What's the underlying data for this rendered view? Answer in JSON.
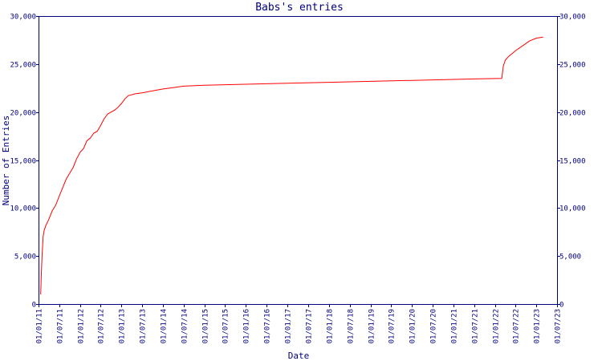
{
  "chart_data": {
    "type": "line",
    "title": "Babs's entries",
    "xlabel": "Date",
    "ylabel": "Number of Entries",
    "ylim": [
      0,
      30000
    ],
    "xlim": [
      "2011-01-01",
      "2023-07-01"
    ],
    "grid": false,
    "y_ticks": [
      {
        "value": 0,
        "label": "0"
      },
      {
        "value": 5000,
        "label": "5,000"
      },
      {
        "value": 10000,
        "label": "10,000"
      },
      {
        "value": 15000,
        "label": "15,000"
      },
      {
        "value": 20000,
        "label": "20,000"
      },
      {
        "value": 25000,
        "label": "25,000"
      },
      {
        "value": 30000,
        "label": "30,000"
      }
    ],
    "x_ticks": [
      {
        "date": "2011-01-01",
        "label": "01/01/11"
      },
      {
        "date": "2011-07-01",
        "label": "01/07/11"
      },
      {
        "date": "2012-01-01",
        "label": "01/01/12"
      },
      {
        "date": "2012-07-01",
        "label": "01/07/12"
      },
      {
        "date": "2013-01-01",
        "label": "01/01/13"
      },
      {
        "date": "2013-07-01",
        "label": "01/07/13"
      },
      {
        "date": "2014-01-01",
        "label": "01/01/14"
      },
      {
        "date": "2014-07-01",
        "label": "01/07/14"
      },
      {
        "date": "2015-01-01",
        "label": "01/01/15"
      },
      {
        "date": "2015-07-01",
        "label": "01/07/15"
      },
      {
        "date": "2016-01-01",
        "label": "01/01/16"
      },
      {
        "date": "2016-07-01",
        "label": "01/07/16"
      },
      {
        "date": "2017-01-01",
        "label": "01/01/17"
      },
      {
        "date": "2017-07-01",
        "label": "01/07/17"
      },
      {
        "date": "2018-01-01",
        "label": "01/01/18"
      },
      {
        "date": "2018-07-01",
        "label": "01/07/18"
      },
      {
        "date": "2019-01-01",
        "label": "01/01/19"
      },
      {
        "date": "2019-07-01",
        "label": "01/07/19"
      },
      {
        "date": "2020-01-01",
        "label": "01/01/20"
      },
      {
        "date": "2020-07-01",
        "label": "01/07/20"
      },
      {
        "date": "2021-01-01",
        "label": "01/01/21"
      },
      {
        "date": "2021-07-01",
        "label": "01/07/21"
      },
      {
        "date": "2022-01-01",
        "label": "01/01/22"
      },
      {
        "date": "2022-07-01",
        "label": "01/07/22"
      },
      {
        "date": "2023-01-01",
        "label": "01/01/23"
      },
      {
        "date": "2023-07-01",
        "label": "01/07/23"
      }
    ],
    "series": [
      {
        "color": "#ff0000",
        "points": [
          {
            "x": "2011-01-20",
            "y": 1000
          },
          {
            "x": "2011-01-25",
            "y": 3000
          },
          {
            "x": "2011-02-01",
            "y": 5000
          },
          {
            "x": "2011-02-10",
            "y": 7000
          },
          {
            "x": "2011-02-20",
            "y": 7700
          },
          {
            "x": "2011-03-07",
            "y": 8200
          },
          {
            "x": "2011-04-01",
            "y": 8800
          },
          {
            "x": "2011-05-01",
            "y": 9700
          },
          {
            "x": "2011-06-01",
            "y": 10300
          },
          {
            "x": "2011-07-01",
            "y": 11200
          },
          {
            "x": "2011-08-01",
            "y": 12100
          },
          {
            "x": "2011-09-01",
            "y": 13000
          },
          {
            "x": "2011-10-01",
            "y": 13600
          },
          {
            "x": "2011-11-01",
            "y": 14200
          },
          {
            "x": "2011-12-01",
            "y": 15100
          },
          {
            "x": "2012-01-01",
            "y": 15800
          },
          {
            "x": "2012-02-01",
            "y": 16200
          },
          {
            "x": "2012-03-01",
            "y": 17000
          },
          {
            "x": "2012-04-01",
            "y": 17300
          },
          {
            "x": "2012-05-01",
            "y": 17800
          },
          {
            "x": "2012-06-01",
            "y": 18000
          },
          {
            "x": "2012-07-01",
            "y": 18600
          },
          {
            "x": "2012-08-01",
            "y": 19300
          },
          {
            "x": "2012-09-01",
            "y": 19800
          },
          {
            "x": "2012-10-01",
            "y": 20000
          },
          {
            "x": "2012-11-01",
            "y": 20200
          },
          {
            "x": "2012-12-01",
            "y": 20500
          },
          {
            "x": "2013-01-01",
            "y": 20900
          },
          {
            "x": "2013-02-01",
            "y": 21400
          },
          {
            "x": "2013-03-01",
            "y": 21700
          },
          {
            "x": "2013-05-01",
            "y": 21900
          },
          {
            "x": "2013-07-01",
            "y": 22000
          },
          {
            "x": "2013-10-01",
            "y": 22200
          },
          {
            "x": "2014-01-01",
            "y": 22400
          },
          {
            "x": "2014-04-01",
            "y": 22550
          },
          {
            "x": "2014-07-01",
            "y": 22700
          },
          {
            "x": "2015-01-01",
            "y": 22800
          },
          {
            "x": "2016-01-01",
            "y": 22900
          },
          {
            "x": "2017-01-01",
            "y": 23000
          },
          {
            "x": "2018-01-01",
            "y": 23100
          },
          {
            "x": "2019-01-01",
            "y": 23200
          },
          {
            "x": "2020-01-01",
            "y": 23300
          },
          {
            "x": "2021-01-01",
            "y": 23400
          },
          {
            "x": "2021-07-01",
            "y": 23450
          },
          {
            "x": "2022-03-01",
            "y": 23500
          },
          {
            "x": "2022-03-15",
            "y": 24800
          },
          {
            "x": "2022-04-01",
            "y": 25400
          },
          {
            "x": "2022-05-01",
            "y": 25800
          },
          {
            "x": "2022-06-01",
            "y": 26100
          },
          {
            "x": "2022-07-01",
            "y": 26400
          },
          {
            "x": "2022-09-01",
            "y": 26900
          },
          {
            "x": "2022-11-01",
            "y": 27400
          },
          {
            "x": "2023-01-01",
            "y": 27700
          },
          {
            "x": "2023-03-01",
            "y": 27800
          }
        ]
      }
    ]
  }
}
